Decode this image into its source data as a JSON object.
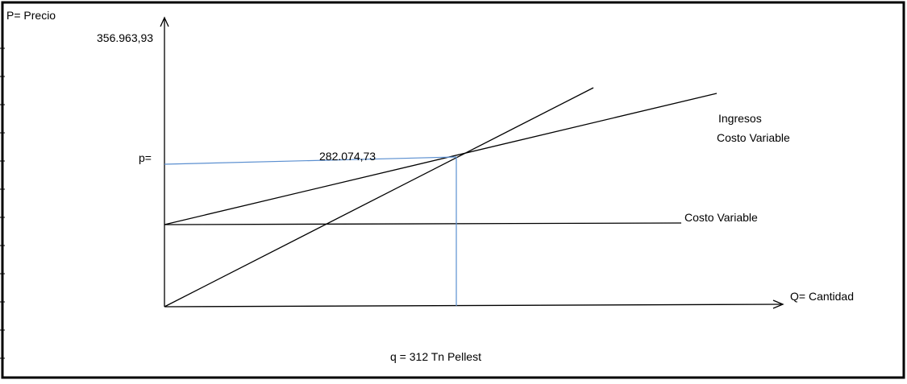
{
  "colors": {
    "axis": "#000000",
    "line": "#1a1a1a",
    "guide": "#5b8fd0",
    "background": "#ffffff"
  },
  "labels": {
    "y_axis": "P= Precio",
    "y_top_value": "356.963,93",
    "p_marker": "p=",
    "p_value": "282.074,73",
    "ingresos": "Ingresos",
    "costo_variable_upper": "Costo Variable",
    "costo_variable_lower": "Costo Variable",
    "x_axis": "Q= Cantidad",
    "q_caption": "q =  312  Tn  Pellest"
  }
}
